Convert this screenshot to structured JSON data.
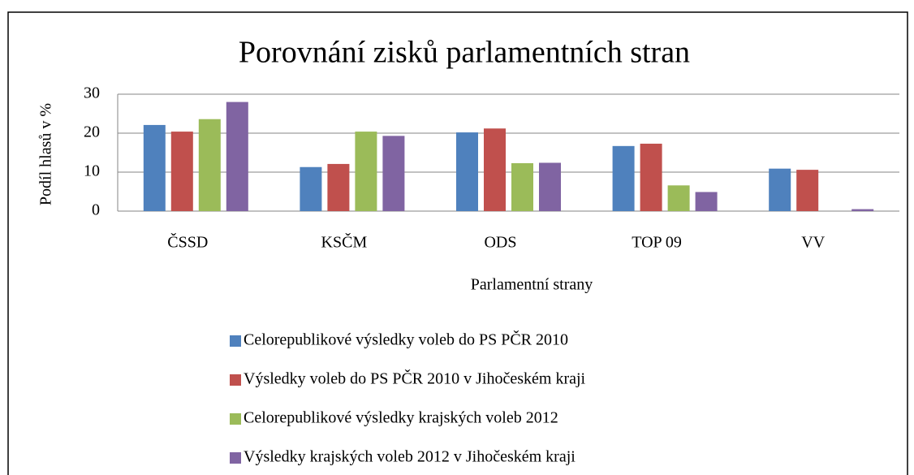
{
  "chart_data": {
    "type": "bar",
    "title": "Porovnání zisků parlamentních stran",
    "x_label": "Parlamentní strany",
    "y_label": "Podíl hlasů v %",
    "categories": [
      "ČSSD",
      "KSČM",
      "ODS",
      "TOP 09",
      "VV"
    ],
    "series": [
      {
        "name": "Celorepublikové výsledky voleb do PS PČR 2010",
        "color": "#4f81bd",
        "values": [
          22.1,
          11.3,
          20.2,
          16.7,
          10.9
        ]
      },
      {
        "name": "Výsledky voleb do PS PČR 2010 v Jihočeském kraji",
        "color": "#c0504d",
        "values": [
          20.4,
          12.1,
          21.2,
          17.3,
          10.6
        ]
      },
      {
        "name": "Celorepublikové výsledky krajských voleb 2012",
        "color": "#9bbb59",
        "values": [
          23.6,
          20.4,
          12.3,
          6.6,
          null
        ]
      },
      {
        "name": "Výsledky krajských voleb 2012 v Jihočeském kraji",
        "color": "#8064a2",
        "values": [
          28.0,
          19.3,
          12.4,
          4.9,
          0.5
        ]
      }
    ],
    "ylim": [
      0,
      30
    ],
    "yticks": [
      0,
      10,
      20,
      30
    ],
    "grid": true,
    "legend": "bottom"
  }
}
